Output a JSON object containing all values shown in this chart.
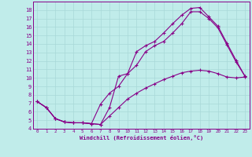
{
  "xlabel": "Windchill (Refroidissement éolien,°C)",
  "background_color": "#c0ecea",
  "grid_color": "#a8d8d8",
  "line_color": "#880088",
  "xlim": [
    -0.5,
    23.5
  ],
  "ylim": [
    4,
    19
  ],
  "xticks": [
    0,
    1,
    2,
    3,
    4,
    5,
    6,
    7,
    8,
    9,
    10,
    11,
    12,
    13,
    14,
    15,
    16,
    17,
    18,
    19,
    20,
    21,
    22,
    23
  ],
  "yticks": [
    4,
    5,
    6,
    7,
    8,
    9,
    10,
    11,
    12,
    13,
    14,
    15,
    16,
    17,
    18
  ],
  "line1_x": [
    0,
    1,
    2,
    3,
    4,
    5,
    6,
    7,
    8,
    9,
    10,
    11,
    12,
    13,
    14,
    15,
    16,
    17,
    18,
    19,
    20,
    21,
    22,
    23
  ],
  "line1_y": [
    7.2,
    6.5,
    5.2,
    4.8,
    4.7,
    4.7,
    4.6,
    4.5,
    6.5,
    10.2,
    10.5,
    13.1,
    13.8,
    14.3,
    15.3,
    16.4,
    17.4,
    18.2,
    18.3,
    17.2,
    16.1,
    14.1,
    12.1,
    10.2
  ],
  "line2_x": [
    0,
    1,
    2,
    3,
    4,
    5,
    6,
    7,
    8,
    9,
    10,
    11,
    12,
    13,
    14,
    15,
    16,
    17,
    18,
    19,
    20,
    21,
    22,
    23
  ],
  "line2_y": [
    7.2,
    6.5,
    5.2,
    4.8,
    4.7,
    4.7,
    4.6,
    6.9,
    8.2,
    9.0,
    10.5,
    11.5,
    13.1,
    13.8,
    14.3,
    15.3,
    16.4,
    17.8,
    17.8,
    17.0,
    15.9,
    13.9,
    11.9,
    10.2
  ],
  "line3_x": [
    0,
    1,
    2,
    3,
    4,
    5,
    6,
    7,
    8,
    9,
    10,
    11,
    12,
    13,
    14,
    15,
    16,
    17,
    18,
    19,
    20,
    21,
    22,
    23
  ],
  "line3_y": [
    7.2,
    6.5,
    5.2,
    4.8,
    4.7,
    4.7,
    4.6,
    4.5,
    5.5,
    6.5,
    7.5,
    8.2,
    8.8,
    9.3,
    9.8,
    10.2,
    10.6,
    10.8,
    10.9,
    10.8,
    10.5,
    10.1,
    10.0,
    10.1
  ]
}
